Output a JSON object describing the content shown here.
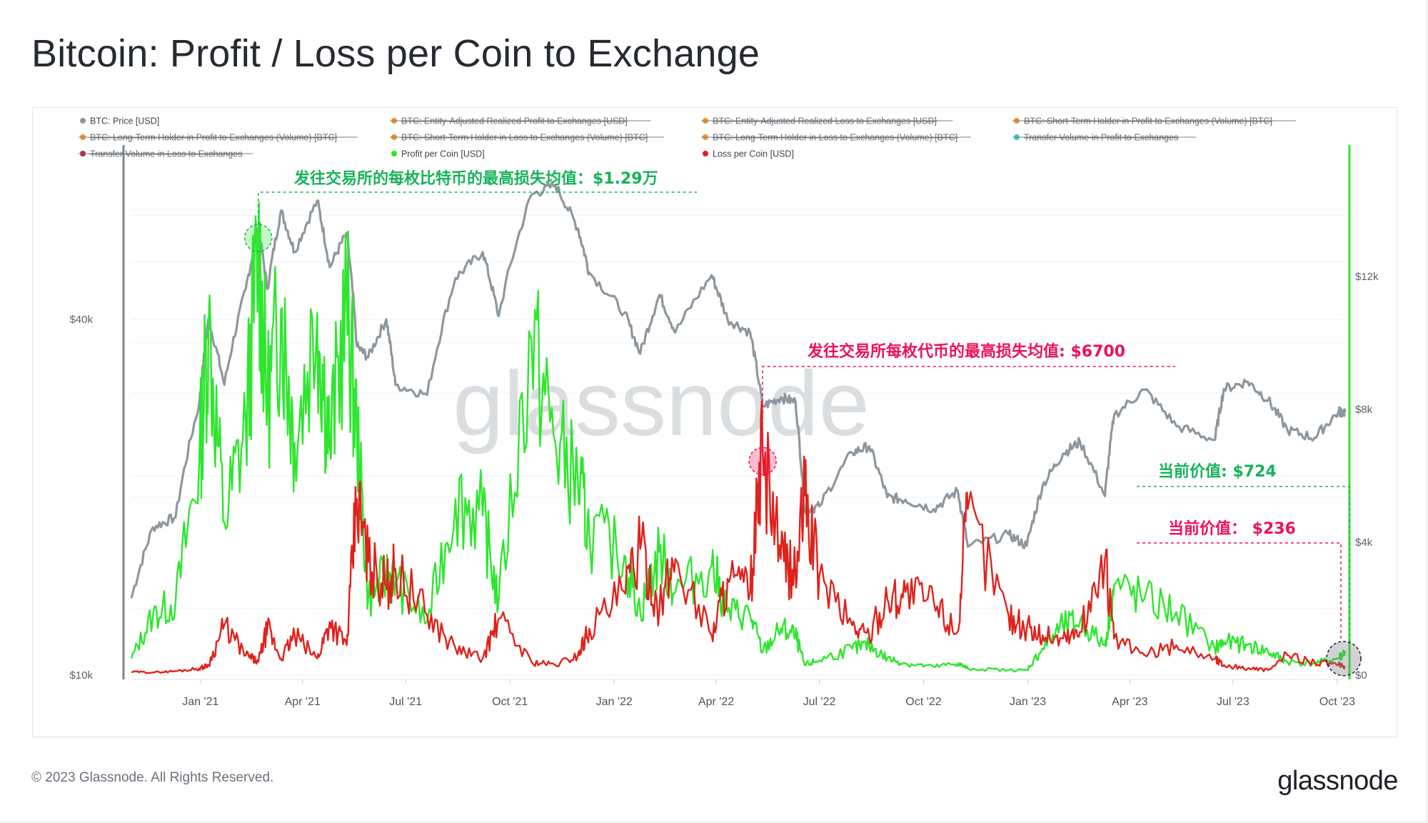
{
  "title": "Bitcoin: Profit / Loss per Coin to Exchange",
  "footer": "© 2023 Glassnode. All Rights Reserved.",
  "brand": "glassnode",
  "watermark": "glassnode",
  "colors": {
    "price": "#8e979e",
    "profit": "#2ee62e",
    "loss": "#e0221c",
    "annotation_green": "#16b35a",
    "annotation_red": "#ee1155",
    "legend_orange": "#f0902a",
    "legend_teal": "#3bc4c8",
    "legend_crimson": "#b8223a"
  },
  "legend": [
    {
      "label": "BTC: Price [USD]",
      "color": "#8e979e",
      "disabled": false
    },
    {
      "label": "BTC: Entity-Adjusted Realized Profit to Exchanges [USD]",
      "color": "#f0902a",
      "disabled": true
    },
    {
      "label": "BTC: Entity-Adjusted Realized Loss to Exchanges [USD]",
      "color": "#f0902a",
      "disabled": true
    },
    {
      "label": "BTC: Short-Term Holder in Profit to Exchanges (Volume) [BTC]",
      "color": "#f0902a",
      "disabled": true
    },
    {
      "label": "BTC: Long-Term Holder in Profit to Exchanges (Volume) [BTC]",
      "color": "#f0902a",
      "disabled": true
    },
    {
      "label": "BTC: Short-Term Holder in Loss to Exchanges (Volume) [BTC]",
      "color": "#f0902a",
      "disabled": true
    },
    {
      "label": "BTC: Long-Term Holder in Loss to Exchanges (Volume) [BTC]",
      "color": "#f0902a",
      "disabled": true
    },
    {
      "label": "Transfer Volume in Profit to Exchanges",
      "color": "#3bc4c8",
      "disabled": true
    },
    {
      "label": "Transfer Volume in Loss to Exchanges",
      "color": "#b8223a",
      "disabled": true
    },
    {
      "label": "Profit per Coin [USD]",
      "color": "#2ee62e",
      "disabled": false
    },
    {
      "label": "Loss per Coin [USD]",
      "color": "#e0221c",
      "disabled": false
    }
  ],
  "annotations": {
    "max_profit": "发往交易所的每枚比特币的最高损失均值：$1.29万",
    "max_loss": "发往交易所每枚代币的最高损失均值: $6700",
    "current_profit": "当前价值: $724",
    "current_loss": "当前价值： $236"
  },
  "chart_data": {
    "type": "line",
    "x_ticks": [
      "Jan '21",
      "Apr '21",
      "Jul '21",
      "Oct '21",
      "Jan '22",
      "Apr '22",
      "Jul '22",
      "Oct '22",
      "Jan '23",
      "Apr '23",
      "Jul '23",
      "Oct '23"
    ],
    "x_tick_dates": [
      "2021-01-01",
      "2021-04-01",
      "2021-07-01",
      "2021-10-01",
      "2022-01-01",
      "2022-04-01",
      "2022-07-01",
      "2022-10-01",
      "2023-01-01",
      "2023-04-01",
      "2023-07-01",
      "2023-10-01"
    ],
    "x_range": [
      "2020-11-01",
      "2023-10-08"
    ],
    "y_left": {
      "scale": "log",
      "range": [
        10000,
        80000
      ],
      "ticks": [
        10000,
        40000
      ],
      "tick_labels": [
        "$10k",
        "$40k"
      ]
    },
    "y_right": {
      "scale": "linear",
      "range": [
        0,
        16000
      ],
      "ticks": [
        0,
        4000,
        8000,
        12000
      ],
      "tick_labels": [
        "$0",
        "$4k",
        "$8k",
        "$12k"
      ]
    },
    "grid": true,
    "legend_position": "top",
    "series": [
      {
        "name": "BTC: Price [USD]",
        "axis": "left",
        "points": [
          [
            "2020-11-01",
            13500
          ],
          [
            "2020-11-20",
            17800
          ],
          [
            "2020-12-10",
            18500
          ],
          [
            "2020-12-31",
            28900
          ],
          [
            "2021-01-08",
            40000
          ],
          [
            "2021-01-22",
            31000
          ],
          [
            "2021-02-10",
            45000
          ],
          [
            "2021-02-21",
            57000
          ],
          [
            "2021-03-01",
            45000
          ],
          [
            "2021-03-13",
            61000
          ],
          [
            "2021-03-25",
            52000
          ],
          [
            "2021-04-14",
            63500
          ],
          [
            "2021-04-25",
            49000
          ],
          [
            "2021-05-10",
            56000
          ],
          [
            "2021-05-19",
            36000
          ],
          [
            "2021-05-29",
            34500
          ],
          [
            "2021-06-14",
            40000
          ],
          [
            "2021-06-22",
            31000
          ],
          [
            "2021-07-20",
            29800
          ],
          [
            "2021-08-14",
            47000
          ],
          [
            "2021-09-07",
            52000
          ],
          [
            "2021-09-21",
            40500
          ],
          [
            "2021-10-20",
            65000
          ],
          [
            "2021-11-10",
            67500
          ],
          [
            "2021-11-30",
            57000
          ],
          [
            "2021-12-10",
            48000
          ],
          [
            "2022-01-10",
            41000
          ],
          [
            "2022-01-24",
            35000
          ],
          [
            "2022-02-10",
            44000
          ],
          [
            "2022-02-24",
            38000
          ],
          [
            "2022-03-28",
            47500
          ],
          [
            "2022-04-11",
            40000
          ],
          [
            "2022-05-01",
            38000
          ],
          [
            "2022-05-12",
            28500
          ],
          [
            "2022-05-28",
            29500
          ],
          [
            "2022-06-10",
            29000
          ],
          [
            "2022-06-18",
            19000
          ],
          [
            "2022-07-01",
            19300
          ],
          [
            "2022-07-30",
            23800
          ],
          [
            "2022-08-14",
            24400
          ],
          [
            "2022-08-30",
            20000
          ],
          [
            "2022-09-15",
            19800
          ],
          [
            "2022-10-10",
            19100
          ],
          [
            "2022-10-31",
            20500
          ],
          [
            "2022-11-09",
            16500
          ],
          [
            "2022-12-15",
            17300
          ],
          [
            "2022-12-31",
            16550
          ],
          [
            "2023-01-14",
            20900
          ],
          [
            "2023-02-01",
            23700
          ],
          [
            "2023-02-16",
            24800
          ],
          [
            "2023-03-10",
            20100
          ],
          [
            "2023-03-18",
            27500
          ],
          [
            "2023-04-14",
            30400
          ],
          [
            "2023-05-12",
            26400
          ],
          [
            "2023-06-15",
            25000
          ],
          [
            "2023-06-23",
            30500
          ],
          [
            "2023-07-14",
            31400
          ],
          [
            "2023-08-01",
            29200
          ],
          [
            "2023-08-18",
            26000
          ],
          [
            "2023-09-11",
            25200
          ],
          [
            "2023-10-02",
            27900
          ],
          [
            "2023-10-08",
            27900
          ]
        ]
      },
      {
        "name": "Profit per Coin [USD]",
        "axis": "right",
        "points": [
          [
            "2020-11-01",
            500
          ],
          [
            "2020-11-20",
            1800
          ],
          [
            "2020-12-10",
            2200
          ],
          [
            "2020-12-31",
            6500
          ],
          [
            "2021-01-08",
            10500
          ],
          [
            "2021-01-22",
            4600
          ],
          [
            "2021-02-10",
            7500
          ],
          [
            "2021-02-21",
            12900
          ],
          [
            "2021-03-01",
            8200
          ],
          [
            "2021-03-13",
            11000
          ],
          [
            "2021-03-25",
            7000
          ],
          [
            "2021-04-14",
            10900
          ],
          [
            "2021-04-25",
            6900
          ],
          [
            "2021-05-10",
            11200
          ],
          [
            "2021-05-19",
            7300
          ],
          [
            "2021-05-29",
            2300
          ],
          [
            "2021-06-14",
            3000
          ],
          [
            "2021-06-22",
            2800
          ],
          [
            "2021-07-20",
            1600
          ],
          [
            "2021-08-14",
            5300
          ],
          [
            "2021-09-07",
            4800
          ],
          [
            "2021-09-21",
            2200
          ],
          [
            "2021-10-20",
            10100
          ],
          [
            "2021-11-10",
            7000
          ],
          [
            "2021-11-30",
            5800
          ],
          [
            "2021-12-10",
            4300
          ],
          [
            "2022-01-10",
            3600
          ],
          [
            "2022-01-24",
            1900
          ],
          [
            "2022-02-10",
            3700
          ],
          [
            "2022-02-24",
            2500
          ],
          [
            "2022-03-28",
            3300
          ],
          [
            "2022-04-11",
            1900
          ],
          [
            "2022-05-01",
            1800
          ],
          [
            "2022-05-12",
            700
          ],
          [
            "2022-05-28",
            1400
          ],
          [
            "2022-06-10",
            1200
          ],
          [
            "2022-06-18",
            300
          ],
          [
            "2022-07-01",
            450
          ],
          [
            "2022-07-30",
            800
          ],
          [
            "2022-08-14",
            900
          ],
          [
            "2022-08-30",
            500
          ],
          [
            "2022-09-15",
            350
          ],
          [
            "2022-10-10",
            250
          ],
          [
            "2022-10-31",
            350
          ],
          [
            "2022-11-09",
            200
          ],
          [
            "2022-12-15",
            150
          ],
          [
            "2022-12-31",
            150
          ],
          [
            "2023-01-14",
            800
          ],
          [
            "2023-02-01",
            1500
          ],
          [
            "2023-02-16",
            1600
          ],
          [
            "2023-03-10",
            900
          ],
          [
            "2023-03-18",
            2700
          ],
          [
            "2023-04-14",
            2300
          ],
          [
            "2023-05-12",
            1900
          ],
          [
            "2023-06-15",
            800
          ],
          [
            "2023-06-23",
            1000
          ],
          [
            "2023-07-14",
            900
          ],
          [
            "2023-08-01",
            700
          ],
          [
            "2023-08-18",
            400
          ],
          [
            "2023-09-11",
            350
          ],
          [
            "2023-10-02",
            500
          ],
          [
            "2023-10-08",
            724
          ]
        ]
      },
      {
        "name": "Loss per Coin [USD]",
        "axis": "right",
        "points": [
          [
            "2020-11-01",
            100
          ],
          [
            "2020-11-20",
            80
          ],
          [
            "2020-12-10",
            120
          ],
          [
            "2020-12-31",
            200
          ],
          [
            "2021-01-08",
            300
          ],
          [
            "2021-01-22",
            1500
          ],
          [
            "2021-02-10",
            600
          ],
          [
            "2021-02-21",
            400
          ],
          [
            "2021-03-01",
            1400
          ],
          [
            "2021-03-13",
            500
          ],
          [
            "2021-03-25",
            1200
          ],
          [
            "2021-04-14",
            500
          ],
          [
            "2021-04-25",
            1600
          ],
          [
            "2021-05-10",
            900
          ],
          [
            "2021-05-19",
            5300
          ],
          [
            "2021-05-29",
            3400
          ],
          [
            "2021-06-14",
            2700
          ],
          [
            "2021-06-22",
            3200
          ],
          [
            "2021-07-20",
            1800
          ],
          [
            "2021-08-14",
            800
          ],
          [
            "2021-09-07",
            500
          ],
          [
            "2021-09-21",
            1700
          ],
          [
            "2021-10-20",
            400
          ],
          [
            "2021-11-10",
            300
          ],
          [
            "2021-11-30",
            600
          ],
          [
            "2021-12-10",
            1400
          ],
          [
            "2022-01-10",
            2500
          ],
          [
            "2022-01-24",
            3800
          ],
          [
            "2022-02-10",
            2000
          ],
          [
            "2022-02-24",
            3500
          ],
          [
            "2022-03-28",
            1200
          ],
          [
            "2022-04-11",
            2900
          ],
          [
            "2022-05-01",
            2500
          ],
          [
            "2022-05-12",
            6700
          ],
          [
            "2022-05-28",
            3500
          ],
          [
            "2022-06-10",
            3000
          ],
          [
            "2022-06-18",
            5400
          ],
          [
            "2022-07-01",
            3000
          ],
          [
            "2022-07-30",
            1500
          ],
          [
            "2022-08-14",
            1200
          ],
          [
            "2022-08-30",
            2300
          ],
          [
            "2022-09-15",
            2500
          ],
          [
            "2022-10-10",
            2200
          ],
          [
            "2022-10-31",
            1300
          ],
          [
            "2022-11-09",
            5000
          ],
          [
            "2022-12-15",
            1800
          ],
          [
            "2022-12-31",
            1400
          ],
          [
            "2023-01-14",
            1200
          ],
          [
            "2023-02-01",
            1100
          ],
          [
            "2023-02-16",
            1300
          ],
          [
            "2023-03-10",
            3500
          ],
          [
            "2023-03-18",
            1100
          ],
          [
            "2023-04-14",
            600
          ],
          [
            "2023-05-12",
            900
          ],
          [
            "2023-06-15",
            500
          ],
          [
            "2023-06-23",
            300
          ],
          [
            "2023-07-14",
            200
          ],
          [
            "2023-08-01",
            150
          ],
          [
            "2023-08-18",
            600
          ],
          [
            "2023-09-11",
            400
          ],
          [
            "2023-10-02",
            300
          ],
          [
            "2023-10-08",
            236
          ]
        ]
      }
    ]
  }
}
